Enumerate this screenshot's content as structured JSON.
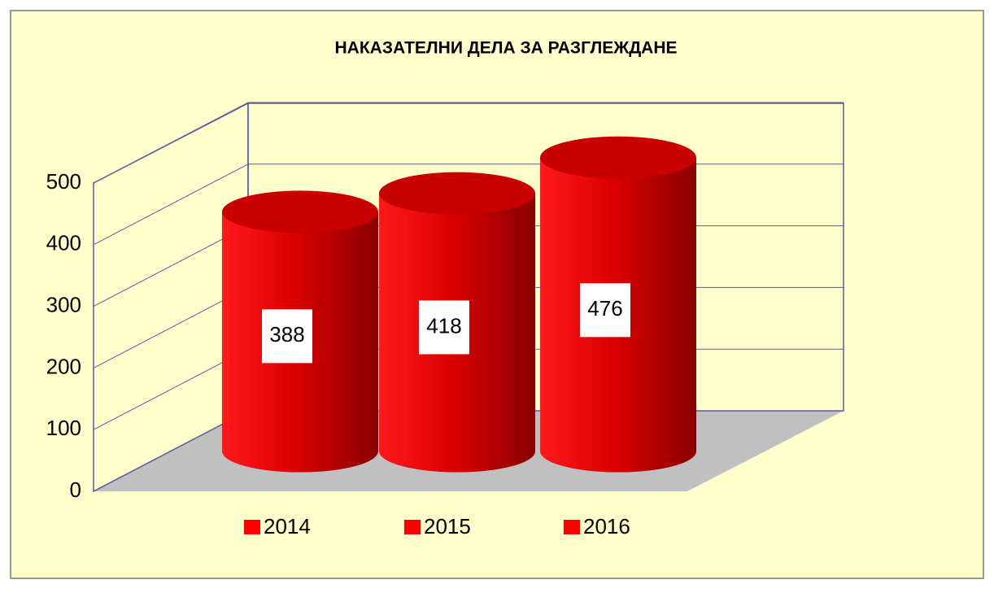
{
  "chart_data": {
    "type": "bar",
    "title": "НАКАЗАТЕЛНИ ДЕЛА ЗА РАЗГЛЕЖДАНЕ",
    "categories": [
      null
    ],
    "series": [
      {
        "name": "2014",
        "color": "#ff0000",
        "values": [
          388
        ]
      },
      {
        "name": "2015",
        "color": "#ff0000",
        "values": [
          418
        ]
      },
      {
        "name": "2016",
        "color": "#ff0000",
        "values": [
          476
        ]
      }
    ],
    "ylim": [
      0,
      500
    ],
    "yticks": [
      0,
      100,
      200,
      300,
      400,
      500
    ],
    "grid": true,
    "legend": "bottom"
  }
}
